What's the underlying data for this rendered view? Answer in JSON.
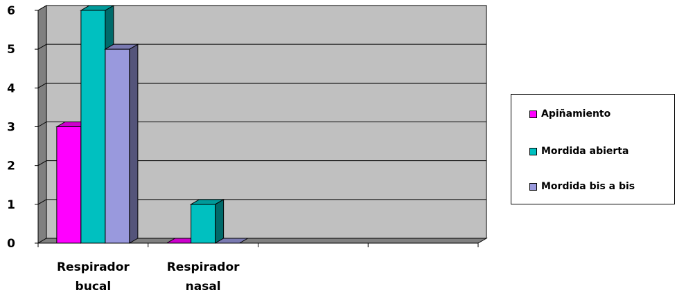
{
  "chart_data": {
    "type": "bar",
    "categories": [
      [
        "Respirador",
        "bucal"
      ],
      [
        "Respirador",
        "nasal"
      ],
      [
        "",
        ""
      ],
      [
        "",
        ""
      ]
    ],
    "series": [
      {
        "name": "Apiñamiento",
        "values": [
          3,
          0,
          null,
          null
        ],
        "color": "#FF00FF"
      },
      {
        "name": "Mordida abierta",
        "values": [
          6,
          1,
          null,
          null
        ],
        "color": "#00C0C0"
      },
      {
        "name": "Mordida bis a bis",
        "values": [
          5,
          0,
          null,
          null
        ],
        "color": "#9999DD"
      }
    ],
    "ylim": [
      0,
      6
    ],
    "yticks": [
      0,
      1,
      2,
      3,
      4,
      5,
      6
    ],
    "grid": true,
    "plot_background": "#C0C0C0",
    "legend_position": "right",
    "style": "3d"
  }
}
